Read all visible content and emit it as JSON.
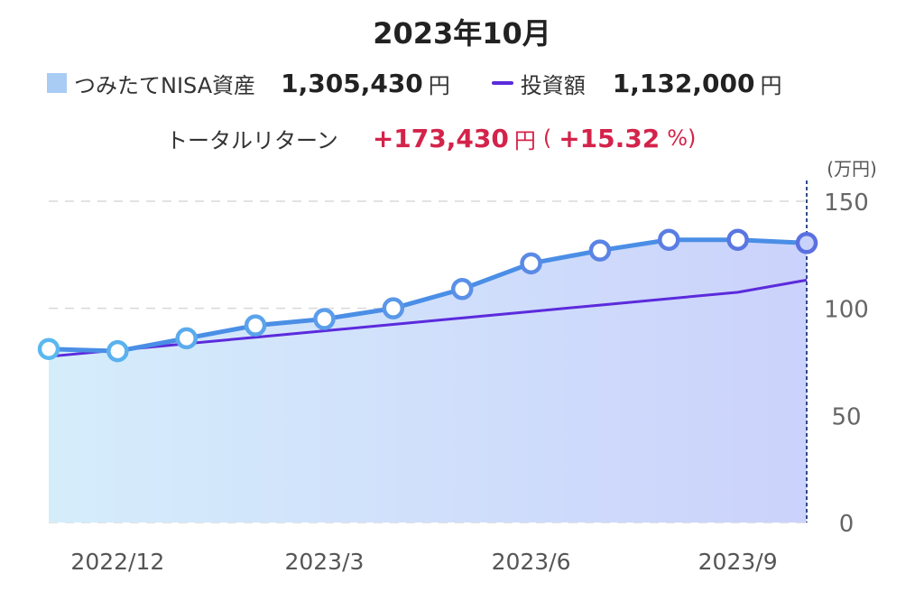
{
  "header": {
    "title": "2023年10月",
    "asset_label": "つみたてNISA資産",
    "asset_value": "1,305,430",
    "asset_unit": "円",
    "invest_label": "投資額",
    "invest_value": "1,132,000",
    "invest_unit": "円",
    "return_label": "トータルリターン",
    "return_value": "+173,430",
    "return_unit": "円",
    "return_paren_open": "(",
    "return_pct": "+15.32",
    "return_pct_unit": "%)"
  },
  "colors": {
    "asset_line": "#4a8ee6",
    "asset_fill_left": "#d5edfb",
    "asset_fill_right": "#cbd2fb",
    "invest_line": "#5b2bdc",
    "marker_first": "#5ab8ef",
    "marker_last": "#5a6fe0",
    "grid": "#d9d9d9",
    "cursor": "#1c3a78",
    "red": "#d4234a"
  },
  "chart_data": {
    "type": "area",
    "y_unit": "(万円)",
    "ylim": [
      0,
      150
    ],
    "y_ticks": [
      0,
      50,
      100,
      150
    ],
    "x_tick_labels": [
      {
        "index": 1,
        "label": "2022/12"
      },
      {
        "index": 4,
        "label": "2023/3"
      },
      {
        "index": 7,
        "label": "2023/6"
      },
      {
        "index": 10,
        "label": "2023/9"
      }
    ],
    "series": [
      {
        "name": "つみたてNISA資産",
        "style": "area-with-markers",
        "values": [
          81,
          80,
          86,
          92,
          95,
          100,
          109,
          121,
          127,
          132,
          132,
          130.5
        ]
      },
      {
        "name": "投資額",
        "style": "line",
        "values": [
          77.5,
          80.5,
          83.5,
          86.5,
          89.5,
          92.5,
          95.5,
          98.5,
          101.5,
          104.5,
          107.5,
          113.2
        ]
      }
    ],
    "grid": true,
    "cursor_index": 11
  }
}
